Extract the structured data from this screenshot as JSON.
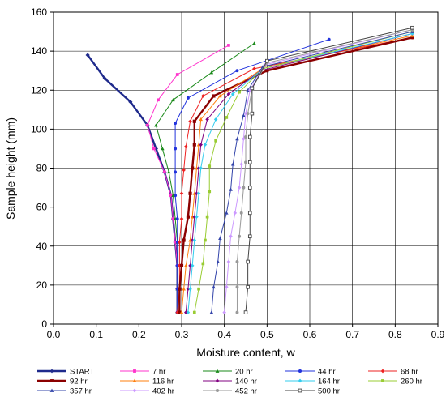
{
  "chart_data": {
    "type": "line",
    "title": "",
    "xlabel": "Moisture content, w",
    "ylabel": "Sample height (mm)",
    "xlim": [
      0,
      0.9
    ],
    "ylim": [
      0,
      160
    ],
    "xticks": [
      "0.0",
      "0.1",
      "0.2",
      "0.3",
      "0.4",
      "0.5",
      "0.6",
      "0.7",
      "0.8",
      "0.9"
    ],
    "yticks": [
      "0",
      "20",
      "40",
      "60",
      "80",
      "100",
      "120",
      "140",
      "160"
    ],
    "grid": true,
    "legend_position": "bottom",
    "series": [
      {
        "name": "START",
        "color": "#1f2a8c",
        "marker": "diamond",
        "points": [
          [
            0.08,
            138
          ],
          [
            0.12,
            126
          ],
          [
            0.18,
            114
          ],
          [
            0.22,
            102
          ],
          [
            0.24,
            90
          ],
          [
            0.26,
            78
          ],
          [
            0.275,
            66
          ],
          [
            0.28,
            54
          ],
          [
            0.285,
            42
          ],
          [
            0.29,
            30
          ],
          [
            0.29,
            18
          ],
          [
            0.29,
            6
          ]
        ]
      },
      {
        "name": "7 hr",
        "color": "#ff33cc",
        "marker": "square",
        "points": [
          [
            0.41,
            143
          ],
          [
            0.29,
            128
          ],
          [
            0.245,
            115
          ],
          [
            0.22,
            102
          ],
          [
            0.235,
            90
          ],
          [
            0.26,
            78
          ],
          [
            0.275,
            66
          ],
          [
            0.28,
            54
          ],
          [
            0.285,
            42
          ],
          [
            0.29,
            30
          ],
          [
            0.29,
            18
          ],
          [
            0.29,
            6
          ]
        ]
      },
      {
        "name": "20 hr",
        "color": "#1a8a1a",
        "marker": "triangle",
        "points": [
          [
            0.47,
            144
          ],
          [
            0.37,
            129
          ],
          [
            0.28,
            115
          ],
          [
            0.24,
            102
          ],
          [
            0.255,
            90
          ],
          [
            0.27,
            78
          ],
          [
            0.28,
            66
          ],
          [
            0.285,
            54
          ],
          [
            0.29,
            42
          ],
          [
            0.29,
            30
          ],
          [
            0.29,
            18
          ],
          [
            0.29,
            6
          ]
        ]
      },
      {
        "name": "44 hr",
        "color": "#2233dd",
        "marker": "circle",
        "points": [
          [
            0.645,
            146
          ],
          [
            0.43,
            130
          ],
          [
            0.315,
            116
          ],
          [
            0.285,
            103
          ],
          [
            0.285,
            90
          ],
          [
            0.285,
            78
          ],
          [
            0.285,
            66
          ],
          [
            0.29,
            54
          ],
          [
            0.29,
            42
          ],
          [
            0.29,
            30
          ],
          [
            0.29,
            18
          ],
          [
            0.29,
            6
          ]
        ]
      },
      {
        "name": "68 hr",
        "color": "#ee2222",
        "marker": "diamond",
        "points": [
          [
            0.84,
            147
          ],
          [
            0.47,
            131
          ],
          [
            0.35,
            117
          ],
          [
            0.32,
            104
          ],
          [
            0.31,
            91
          ],
          [
            0.305,
            79
          ],
          [
            0.3,
            67
          ],
          [
            0.3,
            54
          ],
          [
            0.295,
            42
          ],
          [
            0.295,
            30
          ],
          [
            0.295,
            18
          ],
          [
            0.29,
            6
          ]
        ]
      },
      {
        "name": "92 hr",
        "color": "#8b0000",
        "marker": "square",
        "points": [
          [
            0.84,
            147
          ],
          [
            0.5,
            130
          ],
          [
            0.375,
            117
          ],
          [
            0.33,
            104
          ],
          [
            0.33,
            92
          ],
          [
            0.325,
            80
          ],
          [
            0.32,
            67
          ],
          [
            0.315,
            55
          ],
          [
            0.305,
            43
          ],
          [
            0.3,
            30
          ],
          [
            0.295,
            18
          ],
          [
            0.295,
            6
          ]
        ]
      },
      {
        "name": "116 hr",
        "color": "#ff7f0e",
        "marker": "triangle",
        "points": [
          [
            0.84,
            148
          ],
          [
            0.49,
            131
          ],
          [
            0.39,
            117
          ],
          [
            0.345,
            105
          ],
          [
            0.34,
            92
          ],
          [
            0.335,
            80
          ],
          [
            0.33,
            67
          ],
          [
            0.325,
            55
          ],
          [
            0.32,
            43
          ],
          [
            0.31,
            30
          ],
          [
            0.305,
            18
          ],
          [
            0.3,
            6
          ]
        ]
      },
      {
        "name": "140 hr",
        "color": "#800080",
        "marker": "diamond",
        "points": [
          [
            0.84,
            149
          ],
          [
            0.485,
            130
          ],
          [
            0.41,
            118
          ],
          [
            0.36,
            105
          ],
          [
            0.345,
            92
          ],
          [
            0.34,
            80
          ],
          [
            0.335,
            67
          ],
          [
            0.33,
            55
          ],
          [
            0.325,
            43
          ],
          [
            0.32,
            30
          ],
          [
            0.315,
            18
          ],
          [
            0.31,
            6
          ]
        ]
      },
      {
        "name": "164 hr",
        "color": "#33ccee",
        "marker": "diamond",
        "points": [
          [
            0.84,
            149
          ],
          [
            0.49,
            131
          ],
          [
            0.42,
            118
          ],
          [
            0.38,
            105
          ],
          [
            0.355,
            92
          ],
          [
            0.345,
            80
          ],
          [
            0.34,
            67
          ],
          [
            0.335,
            55
          ],
          [
            0.33,
            43
          ],
          [
            0.325,
            30
          ],
          [
            0.32,
            18
          ],
          [
            0.315,
            6
          ]
        ]
      },
      {
        "name": "260 hr",
        "color": "#99cc33",
        "marker": "square",
        "points": [
          [
            0.84,
            150
          ],
          [
            0.49,
            131
          ],
          [
            0.435,
            119
          ],
          [
            0.405,
            106
          ],
          [
            0.38,
            94
          ],
          [
            0.365,
            81
          ],
          [
            0.365,
            68
          ],
          [
            0.36,
            55
          ],
          [
            0.355,
            43
          ],
          [
            0.35,
            31
          ],
          [
            0.34,
            18
          ],
          [
            0.33,
            6
          ]
        ]
      },
      {
        "name": "357 hr",
        "color": "#3344aa",
        "marker": "triangle",
        "points": [
          [
            0.84,
            150
          ],
          [
            0.49,
            132
          ],
          [
            0.455,
            120
          ],
          [
            0.445,
            107
          ],
          [
            0.43,
            95
          ],
          [
            0.42,
            82
          ],
          [
            0.415,
            69
          ],
          [
            0.405,
            57
          ],
          [
            0.39,
            44
          ],
          [
            0.385,
            32
          ],
          [
            0.375,
            19
          ],
          [
            0.37,
            6
          ]
        ]
      },
      {
        "name": "402 hr",
        "color": "#cc99ff",
        "marker": "diamond",
        "points": [
          [
            0.84,
            151
          ],
          [
            0.495,
            133
          ],
          [
            0.46,
            120
          ],
          [
            0.45,
            108
          ],
          [
            0.445,
            95
          ],
          [
            0.44,
            82
          ],
          [
            0.435,
            70
          ],
          [
            0.425,
            57
          ],
          [
            0.415,
            45
          ],
          [
            0.41,
            32
          ],
          [
            0.405,
            19
          ],
          [
            0.4,
            6
          ]
        ]
      },
      {
        "name": "452 hr",
        "color": "#999999",
        "marker": "circle",
        "points": [
          [
            0.84,
            151
          ],
          [
            0.5,
            134
          ],
          [
            0.465,
            121
          ],
          [
            0.455,
            108
          ],
          [
            0.45,
            96
          ],
          [
            0.45,
            83
          ],
          [
            0.445,
            70
          ],
          [
            0.44,
            57
          ],
          [
            0.435,
            45
          ],
          [
            0.43,
            32
          ],
          [
            0.43,
            19
          ],
          [
            0.43,
            6
          ]
        ]
      },
      {
        "name": "500 hr",
        "color": "#444444",
        "marker": "open-square",
        "points": [
          [
            0.84,
            152
          ],
          [
            0.5,
            135
          ],
          [
            0.465,
            121
          ],
          [
            0.465,
            108
          ],
          [
            0.46,
            96
          ],
          [
            0.46,
            83
          ],
          [
            0.46,
            70
          ],
          [
            0.46,
            57
          ],
          [
            0.46,
            45
          ],
          [
            0.455,
            32
          ],
          [
            0.455,
            19
          ],
          [
            0.45,
            6
          ]
        ]
      }
    ]
  }
}
